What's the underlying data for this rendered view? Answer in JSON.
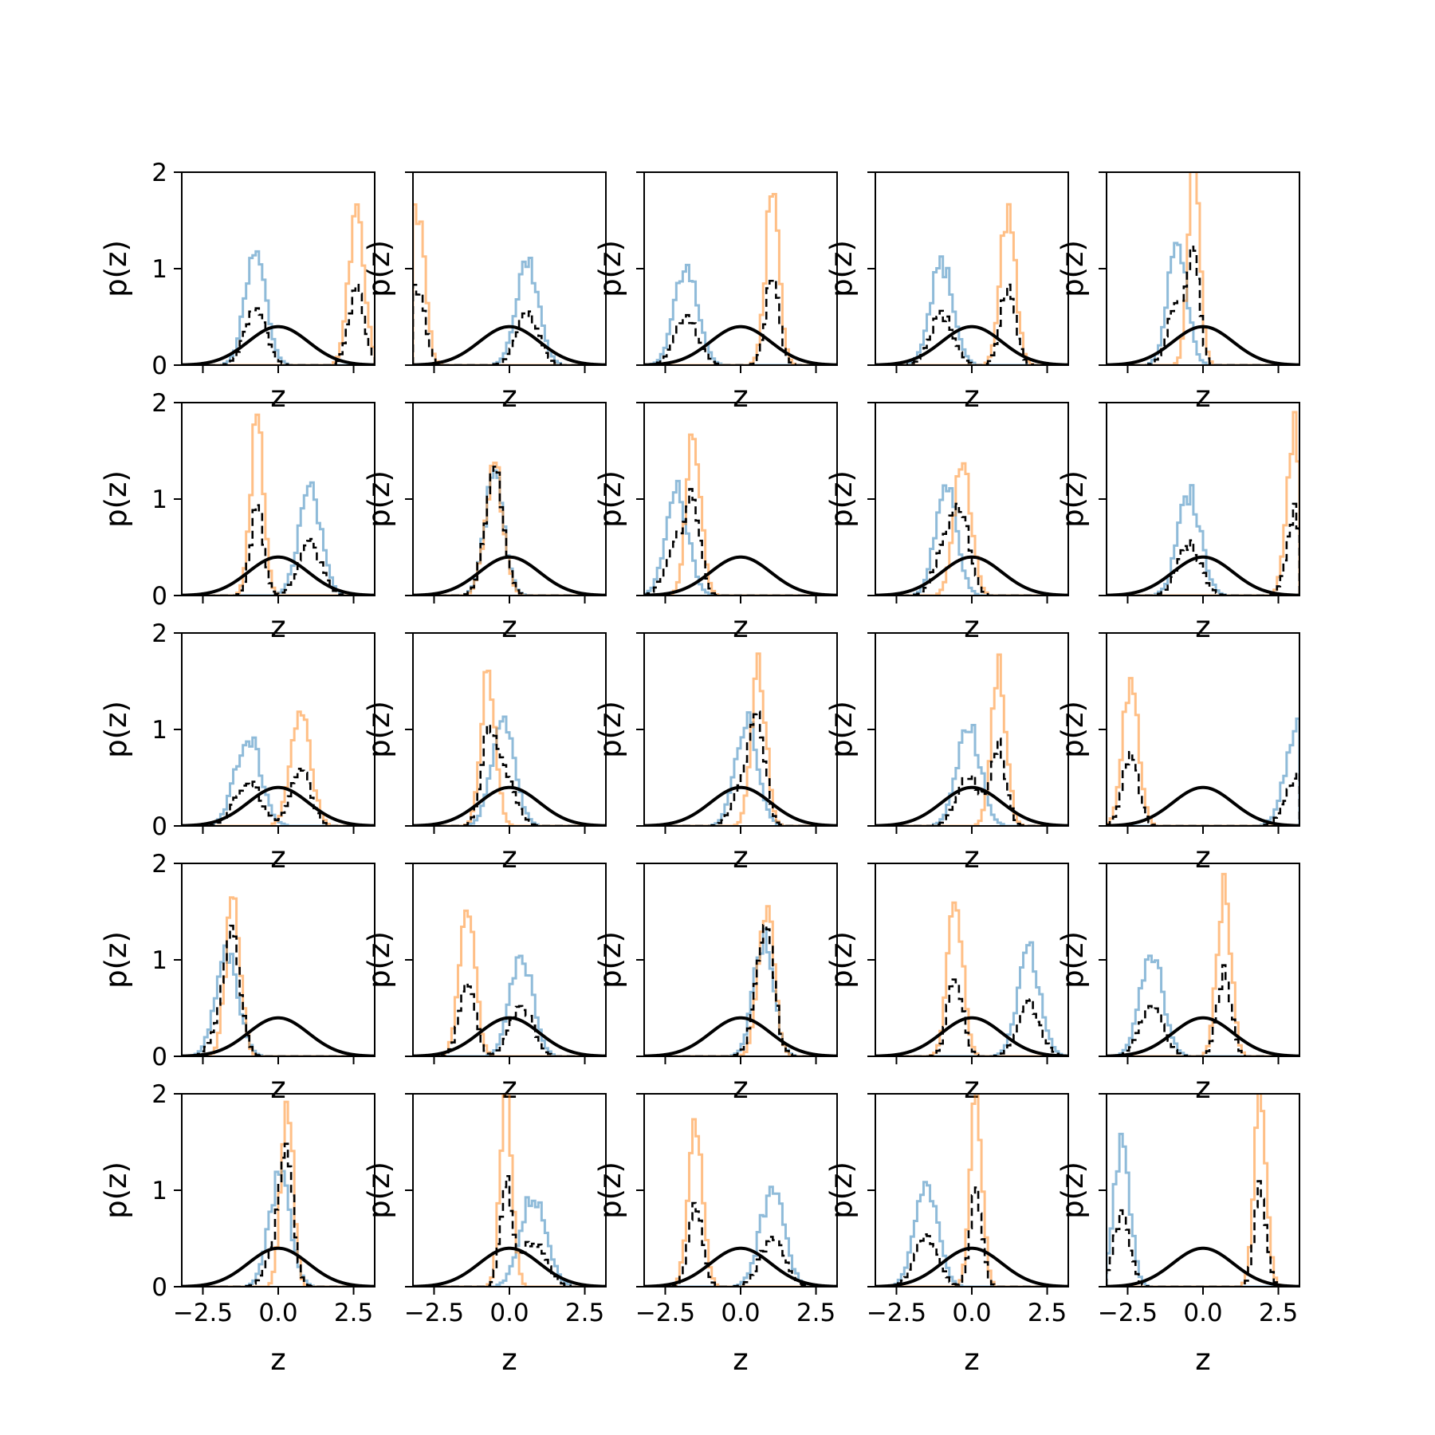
{
  "chart_data": {
    "type": "histogram-grid",
    "rows": 5,
    "cols": 5,
    "xlim": [
      -3.2,
      3.2
    ],
    "ylim": [
      0,
      2
    ],
    "xticks": [
      -2.5,
      0.0,
      2.5
    ],
    "xtick_labels": [
      "−2.5",
      "0.0",
      "2.5"
    ],
    "yticks": [
      0,
      1,
      2
    ],
    "ytick_labels": [
      "0",
      "1",
      "2"
    ],
    "xlabel": "z",
    "ylabel": "p(z)",
    "colors": {
      "blue_component": "#1f77b4",
      "orange_component": "#ff7f0e",
      "mixture": "#000000",
      "prior": "#000000"
    },
    "prior_curve": {
      "mu": 0,
      "sigma": 1
    },
    "panels": [
      {
        "blue": {
          "mu": -0.75,
          "sigma": 0.35
        },
        "orange": {
          "mu": 2.6,
          "sigma": 0.26
        }
      },
      {
        "blue": {
          "mu": 0.6,
          "sigma": 0.37
        },
        "orange": {
          "mu": -3.05,
          "sigma": 0.24
        }
      },
      {
        "blue": {
          "mu": -1.8,
          "sigma": 0.38
        },
        "orange": {
          "mu": 1.05,
          "sigma": 0.23
        }
      },
      {
        "blue": {
          "mu": -1.0,
          "sigma": 0.38
        },
        "orange": {
          "mu": 1.2,
          "sigma": 0.25
        }
      },
      {
        "blue": {
          "mu": -0.85,
          "sigma": 0.32
        },
        "orange": {
          "mu": -0.3,
          "sigma": 0.2
        }
      },
      {
        "blue": {
          "mu": 1.05,
          "sigma": 0.37
        },
        "orange": {
          "mu": -0.7,
          "sigma": 0.22
        }
      },
      {
        "blue": {
          "mu": -0.5,
          "sigma": 0.32
        },
        "orange": {
          "mu": -0.5,
          "sigma": 0.3
        }
      },
      {
        "blue": {
          "mu": -2.1,
          "sigma": 0.37
        },
        "orange": {
          "mu": -1.55,
          "sigma": 0.24
        }
      },
      {
        "blue": {
          "mu": -0.85,
          "sigma": 0.35
        },
        "orange": {
          "mu": -0.3,
          "sigma": 0.28
        }
      },
      {
        "blue": {
          "mu": -0.45,
          "sigma": 0.38
        },
        "orange": {
          "mu": 3.0,
          "sigma": 0.23
        }
      },
      {
        "blue": {
          "mu": -1.0,
          "sigma": 0.42
        },
        "orange": {
          "mu": 0.75,
          "sigma": 0.32
        }
      },
      {
        "blue": {
          "mu": -0.2,
          "sigma": 0.38
        },
        "orange": {
          "mu": -0.7,
          "sigma": 0.24
        }
      },
      {
        "blue": {
          "mu": 0.2,
          "sigma": 0.37
        },
        "orange": {
          "mu": 0.6,
          "sigma": 0.24
        }
      },
      {
        "blue": {
          "mu": -0.1,
          "sigma": 0.39
        },
        "orange": {
          "mu": 0.9,
          "sigma": 0.24
        }
      },
      {
        "blue": {
          "mu": 3.15,
          "sigma": 0.4
        },
        "orange": {
          "mu": -2.4,
          "sigma": 0.26
        }
      },
      {
        "blue": {
          "mu": -1.7,
          "sigma": 0.37
        },
        "orange": {
          "mu": -1.5,
          "sigma": 0.24
        }
      },
      {
        "blue": {
          "mu": 0.4,
          "sigma": 0.37
        },
        "orange": {
          "mu": -1.4,
          "sigma": 0.26
        }
      },
      {
        "blue": {
          "mu": 0.75,
          "sigma": 0.33
        },
        "orange": {
          "mu": 0.85,
          "sigma": 0.26
        }
      },
      {
        "blue": {
          "mu": 1.9,
          "sigma": 0.37
        },
        "orange": {
          "mu": -0.55,
          "sigma": 0.25
        }
      },
      {
        "blue": {
          "mu": -1.7,
          "sigma": 0.38
        },
        "orange": {
          "mu": 0.7,
          "sigma": 0.23
        }
      },
      {
        "blue": {
          "mu": 0.05,
          "sigma": 0.35
        },
        "orange": {
          "mu": 0.3,
          "sigma": 0.2
        }
      },
      {
        "blue": {
          "mu": 0.8,
          "sigma": 0.42
        },
        "orange": {
          "mu": -0.1,
          "sigma": 0.2
        }
      },
      {
        "blue": {
          "mu": 1.05,
          "sigma": 0.4
        },
        "orange": {
          "mu": -1.5,
          "sigma": 0.24
        }
      },
      {
        "blue": {
          "mu": -1.5,
          "sigma": 0.38
        },
        "orange": {
          "mu": 0.15,
          "sigma": 0.2
        }
      },
      {
        "blue": {
          "mu": -2.7,
          "sigma": 0.27
        },
        "orange": {
          "mu": 1.9,
          "sigma": 0.2
        }
      }
    ]
  }
}
